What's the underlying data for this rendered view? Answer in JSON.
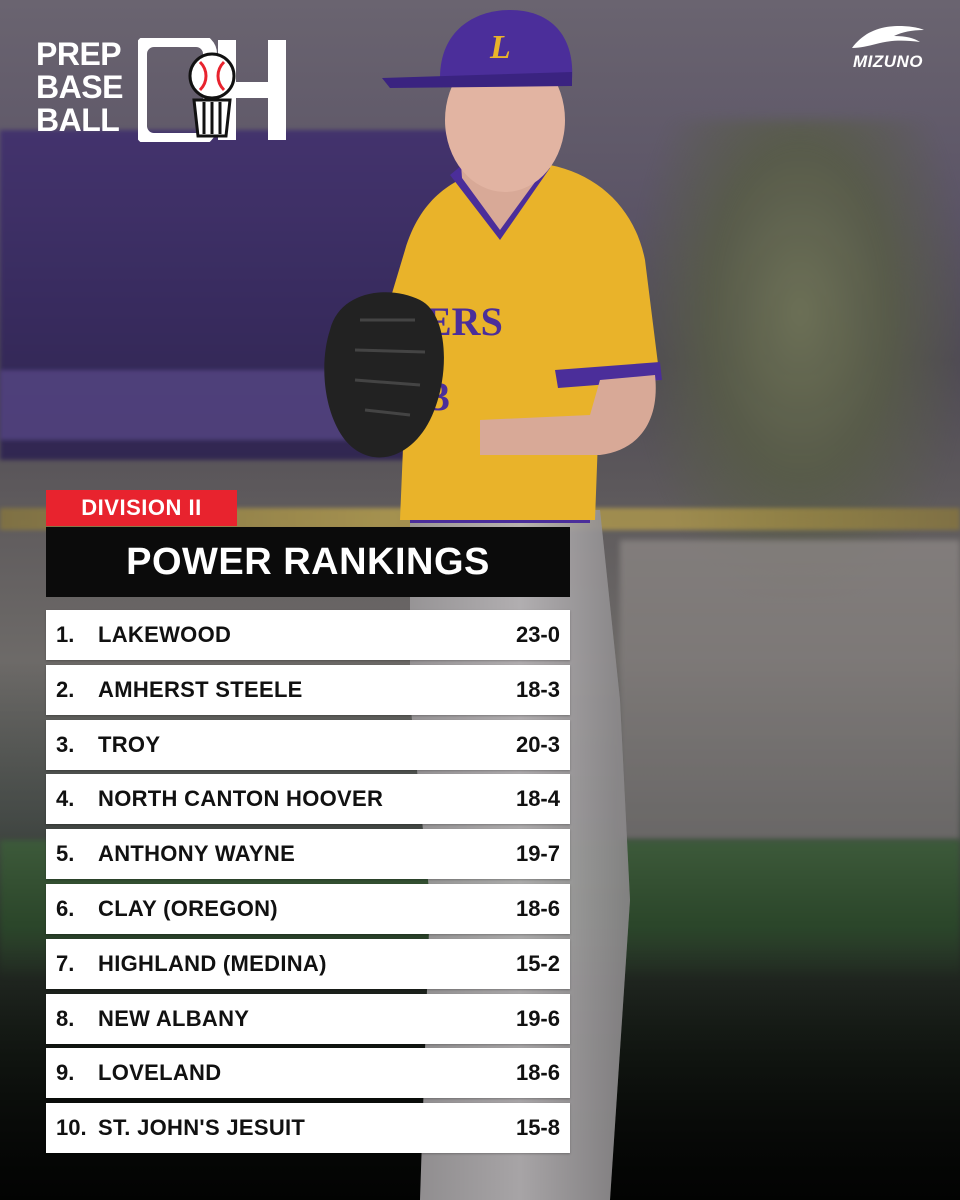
{
  "branding": {
    "logo_words": [
      "PREP",
      "BASE",
      "BALL"
    ],
    "logo_state": "OH",
    "sponsor": "MIZUNO",
    "logo_icon": "baseball-icon",
    "sponsor_icon": "runbird-icon"
  },
  "header": {
    "division": "DIVISION II",
    "title": "POWER RANKINGS"
  },
  "rankings": [
    {
      "rank": "1.",
      "team": "LAKEWOOD",
      "record": "23-0"
    },
    {
      "rank": "2.",
      "team": "AMHERST STEELE",
      "record": "18-3"
    },
    {
      "rank": "3.",
      "team": "TROY",
      "record": "20-3"
    },
    {
      "rank": "4.",
      "team": "NORTH CANTON HOOVER",
      "record": "18-4"
    },
    {
      "rank": "5.",
      "team": "ANTHONY WAYNE",
      "record": "19-7"
    },
    {
      "rank": "6.",
      "team": "CLAY (OREGON)",
      "record": "18-6"
    },
    {
      "rank": "7.",
      "team": "HIGHLAND (MEDINA)",
      "record": "15-2"
    },
    {
      "rank": "8.",
      "team": "NEW ALBANY",
      "record": "19-6"
    },
    {
      "rank": "9.",
      "team": "LOVELAND",
      "record": "18-6"
    },
    {
      "rank": "10.",
      "team": "ST. JOHN'S JESUIT",
      "record": "15-8"
    }
  ],
  "colors": {
    "accent_red": "#e8232e",
    "title_black": "#0b0b0b",
    "row_white": "#ffffff",
    "jersey_gold": "#e9b32a",
    "cap_purple": "#4b2e9a"
  }
}
